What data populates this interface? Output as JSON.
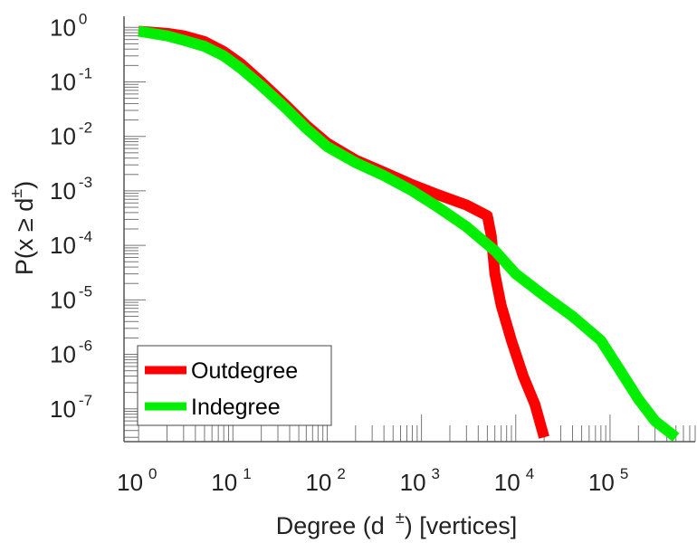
{
  "chart_data": {
    "type": "line",
    "xscale": "log",
    "yscale": "log",
    "xlabel": {
      "base": "Degree (d",
      "sup": "±",
      "tail": ") [vertices]"
    },
    "ylabel": {
      "base": "P(x ≥ d",
      "sup": "±",
      "tail": ")"
    },
    "xlim": [
      0.7,
      800000
    ],
    "ylim": [
      2.5e-08,
      1.6
    ],
    "x_ticks": [
      {
        "base": "10",
        "exp": "0"
      },
      {
        "base": "10",
        "exp": "1"
      },
      {
        "base": "10",
        "exp": "2"
      },
      {
        "base": "10",
        "exp": "3"
      },
      {
        "base": "10",
        "exp": "4"
      },
      {
        "base": "10",
        "exp": "5"
      }
    ],
    "y_ticks": [
      {
        "base": "10",
        "exp": "0"
      },
      {
        "base": "10",
        "exp": "-1"
      },
      {
        "base": "10",
        "exp": "-2"
      },
      {
        "base": "10",
        "exp": "-3"
      },
      {
        "base": "10",
        "exp": "-4"
      },
      {
        "base": "10",
        "exp": "-5"
      },
      {
        "base": "10",
        "exp": "-6"
      },
      {
        "base": "10",
        "exp": "-7"
      }
    ],
    "series": [
      {
        "name": "Outdegree",
        "color": "#ff0000",
        "x": [
          1,
          2,
          3,
          5,
          8,
          12,
          20,
          35,
          60,
          100,
          200,
          400,
          800,
          1500,
          3000,
          5000,
          5500,
          6000,
          7000,
          9000,
          12000,
          16000,
          20000
        ],
        "y": [
          0.85,
          0.78,
          0.7,
          0.55,
          0.36,
          0.22,
          0.1,
          0.04,
          0.016,
          0.0075,
          0.0037,
          0.0022,
          0.0013,
          0.00085,
          0.00055,
          0.00035,
          0.00015,
          3e-05,
          8e-06,
          1.8e-06,
          4e-07,
          1.2e-07,
          3e-08
        ]
      },
      {
        "name": "Indegree",
        "color": "#00ee00",
        "x": [
          1,
          2,
          3,
          5,
          8,
          12,
          20,
          35,
          60,
          100,
          200,
          400,
          800,
          1500,
          3000,
          6000,
          10000,
          20000,
          40000,
          80000,
          120000,
          200000,
          300000,
          500000
        ],
        "y": [
          0.85,
          0.7,
          0.58,
          0.45,
          0.3,
          0.18,
          0.085,
          0.035,
          0.014,
          0.0065,
          0.0033,
          0.0019,
          0.001,
          0.0005,
          0.00022,
          8e-05,
          3e-05,
          1.2e-05,
          5e-06,
          1.8e-06,
          6e-07,
          1.5e-07,
          6e-08,
          3e-08
        ]
      }
    ],
    "legend": {
      "placement": "bottom-left",
      "entries": [
        "Outdegree",
        "Indegree"
      ]
    },
    "grid": false
  }
}
